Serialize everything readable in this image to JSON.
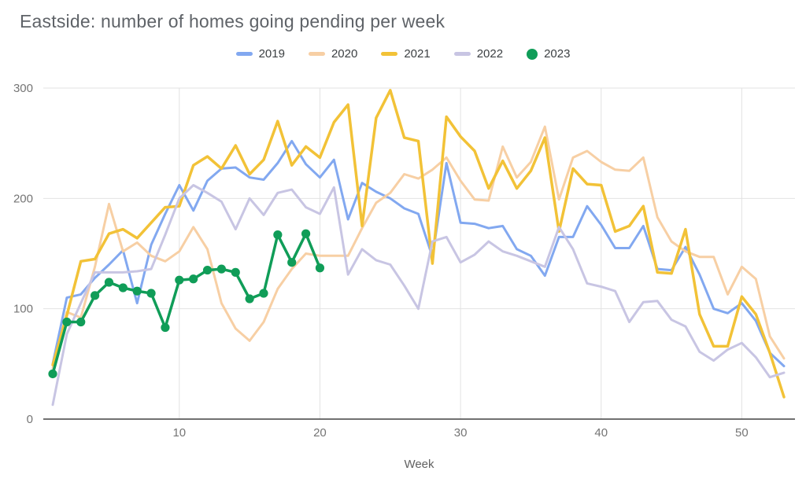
{
  "title": "Eastside: number of homes going pending per week",
  "legend": [
    "2019",
    "2020",
    "2021",
    "2022",
    "2023"
  ],
  "chart_data": {
    "type": "line",
    "title": "Eastside: number of homes going pending per week",
    "xlabel": "Week",
    "ylabel": "",
    "xlim": [
      1,
      53
    ],
    "ylim": [
      0,
      300
    ],
    "x_ticks": [
      10,
      20,
      30,
      40,
      50
    ],
    "y_ticks": [
      0,
      100,
      200,
      300
    ],
    "grid": true,
    "legend_position": "top",
    "x": [
      1,
      2,
      3,
      4,
      5,
      6,
      7,
      8,
      9,
      10,
      11,
      12,
      13,
      14,
      15,
      16,
      17,
      18,
      19,
      20,
      21,
      22,
      23,
      24,
      25,
      26,
      27,
      28,
      29,
      30,
      31,
      32,
      33,
      34,
      35,
      36,
      37,
      38,
      39,
      40,
      41,
      42,
      43,
      44,
      45,
      46,
      47,
      48,
      49,
      50,
      51,
      52,
      53
    ],
    "series": [
      {
        "name": "2019",
        "color": "#82a8f0",
        "width": 3,
        "markers": false,
        "values": [
          50,
          110,
          113,
          128,
          140,
          153,
          105,
          158,
          186,
          212,
          189,
          216,
          227,
          228,
          219,
          217,
          232,
          252,
          231,
          219,
          235,
          181,
          214,
          206,
          200,
          191,
          186,
          147,
          232,
          178,
          177,
          173,
          175,
          154,
          148,
          130,
          165,
          165,
          193,
          176,
          155,
          155,
          175,
          136,
          135,
          156,
          131,
          100,
          96,
          105,
          89,
          60,
          48
        ]
      },
      {
        "name": "2020",
        "color": "#f7cfa4",
        "width": 3,
        "markers": false,
        "values": [
          46,
          97,
          92,
          138,
          195,
          152,
          160,
          148,
          143,
          152,
          174,
          154,
          105,
          82,
          71,
          88,
          118,
          136,
          150,
          148,
          148,
          148,
          173,
          196,
          205,
          222,
          218,
          226,
          237,
          216,
          199,
          198,
          247,
          219,
          233,
          265,
          199,
          237,
          243,
          233,
          226,
          225,
          237,
          183,
          161,
          152,
          147,
          147,
          113,
          138,
          127,
          75,
          55
        ]
      },
      {
        "name": "2021",
        "color": "#f2c237",
        "width": 3.5,
        "markers": false,
        "values": [
          49,
          94,
          143,
          145,
          168,
          172,
          164,
          178,
          192,
          193,
          230,
          238,
          227,
          248,
          222,
          235,
          270,
          230,
          247,
          237,
          269,
          285,
          175,
          273,
          298,
          255,
          252,
          141,
          274,
          256,
          243,
          209,
          234,
          209,
          225,
          255,
          170,
          227,
          213,
          212,
          170,
          175,
          193,
          133,
          132,
          172,
          95,
          66,
          66,
          111,
          95,
          60,
          20
        ]
      },
      {
        "name": "2022",
        "color": "#c8c5e3",
        "width": 3,
        "markers": false,
        "values": [
          13,
          77,
          105,
          133,
          133,
          133,
          134,
          136,
          167,
          200,
          212,
          205,
          197,
          172,
          200,
          185,
          205,
          208,
          192,
          186,
          210,
          131,
          154,
          144,
          140,
          121,
          100,
          161,
          165,
          142,
          149,
          161,
          152,
          148,
          143,
          138,
          174,
          154,
          123,
          120,
          116,
          88,
          106,
          107,
          90,
          84,
          61,
          53,
          63,
          69,
          56,
          38,
          42
        ]
      },
      {
        "name": "2023",
        "color": "#109d58",
        "width": 3.5,
        "markers": true,
        "values": [
          41,
          88,
          88,
          112,
          124,
          119,
          116,
          114,
          83,
          126,
          127,
          135,
          136,
          133,
          109,
          114,
          167,
          142,
          168,
          137,
          null,
          null,
          null,
          null,
          null,
          null,
          null,
          null,
          null,
          null,
          null,
          null,
          null,
          null,
          null,
          null,
          null,
          null,
          null,
          null,
          null,
          null,
          null,
          null,
          null,
          null,
          null,
          null,
          null,
          null,
          null,
          null,
          null
        ]
      }
    ],
    "colors": {
      "grid": "#e2e2e2",
      "axis": "#424242",
      "tick_label": "#757575",
      "title": "#5f6368"
    }
  }
}
